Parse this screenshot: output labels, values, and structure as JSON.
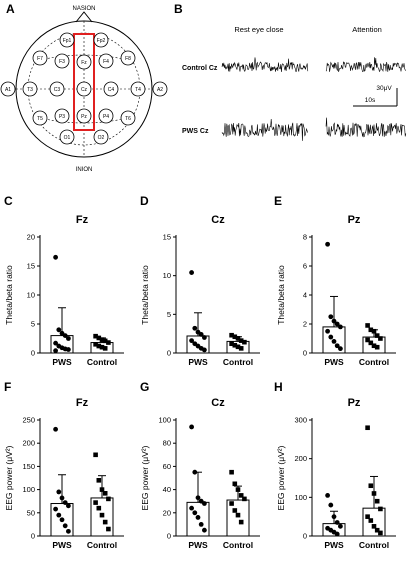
{
  "panel_letters": [
    "A",
    "B",
    "C",
    "D",
    "E",
    "F",
    "G",
    "H"
  ],
  "electrode_map": {
    "top_label": "NASION",
    "bottom_label": "INION",
    "highlight_color": "#e02020",
    "electrodes": [
      "Fp1",
      "Fp2",
      "F7",
      "F3",
      "Fz",
      "F4",
      "F8",
      "A1",
      "T3",
      "C3",
      "Cz",
      "C4",
      "T4",
      "A2",
      "T5",
      "P3",
      "Pz",
      "P4",
      "T6",
      "O1",
      "O2"
    ]
  },
  "eeg": {
    "col_rest": "Rest eye close",
    "col_attention": "Attention",
    "row_control": "Control Cz",
    "row_pws": "PWS Cz",
    "scale_voltage": "30μV",
    "scale_time": "10s"
  },
  "chart_data": [
    {
      "type": "bar",
      "title": "Fz",
      "ylabel": "Theta/beta ratio",
      "ylim": [
        0,
        20
      ],
      "yticks": [
        0,
        5,
        10,
        15,
        20
      ],
      "categories": [
        "PWS",
        "Control"
      ],
      "values": [
        3.0,
        1.8
      ],
      "error": [
        4.8,
        0.8
      ],
      "points": [
        [
          16.5,
          4.0,
          3.4,
          3.0,
          2.5,
          1.7,
          1.2,
          0.9,
          0.7,
          0.6,
          0.4
        ],
        [
          2.9,
          2.6,
          2.3,
          2.1,
          1.8,
          1.5,
          1.2,
          1.0,
          0.8
        ]
      ],
      "markers": [
        "circle",
        "square"
      ]
    },
    {
      "type": "bar",
      "title": "Cz",
      "ylabel": "Theta/beta ratio",
      "ylim": [
        0,
        15
      ],
      "yticks": [
        0,
        5,
        10,
        15
      ],
      "categories": [
        "PWS",
        "Control"
      ],
      "values": [
        2.2,
        1.5
      ],
      "error": [
        3.0,
        0.6
      ],
      "points": [
        [
          10.4,
          3.2,
          2.7,
          2.4,
          2.0,
          1.6,
          1.2,
          0.9,
          0.6,
          0.4
        ],
        [
          2.3,
          2.1,
          1.9,
          1.6,
          1.4,
          1.2,
          1.0,
          0.8,
          0.6
        ]
      ],
      "markers": [
        "circle",
        "square"
      ]
    },
    {
      "type": "bar",
      "title": "Pz",
      "ylabel": "Theta/beta ratio",
      "ylim": [
        0,
        8
      ],
      "yticks": [
        0,
        2,
        4,
        6,
        8
      ],
      "categories": [
        "PWS",
        "Control"
      ],
      "values": [
        1.8,
        1.1
      ],
      "error": [
        2.1,
        0.5
      ],
      "points": [
        [
          7.5,
          2.5,
          2.2,
          2.0,
          1.8,
          1.5,
          1.1,
          0.8,
          0.5,
          0.3
        ],
        [
          1.9,
          1.6,
          1.5,
          1.2,
          1.0,
          0.9,
          0.7,
          0.5,
          0.4
        ]
      ],
      "markers": [
        "circle",
        "square"
      ]
    },
    {
      "type": "bar",
      "title": "Fz",
      "ylabel": "EEG power (μV²)",
      "ylim": [
        0,
        250
      ],
      "yticks": [
        0,
        50,
        100,
        150,
        200,
        250
      ],
      "categories": [
        "PWS",
        "Control"
      ],
      "values": [
        70,
        82
      ],
      "error": [
        62,
        48
      ],
      "points": [
        [
          230,
          95,
          82,
          72,
          65,
          58,
          45,
          35,
          22,
          10
        ],
        [
          175,
          120,
          100,
          92,
          80,
          72,
          60,
          45,
          30,
          15
        ]
      ],
      "markers": [
        "circle",
        "square"
      ]
    },
    {
      "type": "bar",
      "title": "Cz",
      "ylabel": "EEG power (μV²)",
      "ylim": [
        0,
        100
      ],
      "yticks": [
        0,
        20,
        40,
        60,
        80,
        100
      ],
      "categories": [
        "PWS",
        "Control"
      ],
      "values": [
        29,
        31
      ],
      "error": [
        26,
        12
      ],
      "points": [
        [
          94,
          55,
          33,
          30,
          28,
          24,
          20,
          16,
          10,
          5
        ],
        [
          55,
          45,
          40,
          35,
          32,
          28,
          22,
          18,
          12
        ]
      ],
      "markers": [
        "circle",
        "square"
      ]
    },
    {
      "type": "bar",
      "title": "Pz",
      "ylabel": "EEG power (μV²)",
      "ylim": [
        0,
        300
      ],
      "yticks": [
        0,
        100,
        200,
        300
      ],
      "categories": [
        "PWS",
        "Control"
      ],
      "values": [
        32,
        72
      ],
      "error": [
        32,
        82
      ],
      "points": [
        [
          105,
          80,
          50,
          35,
          25,
          20,
          15,
          10,
          5
        ],
        [
          280,
          130,
          110,
          90,
          70,
          50,
          40,
          25,
          15,
          8
        ]
      ],
      "markers": [
        "circle",
        "square"
      ]
    }
  ]
}
